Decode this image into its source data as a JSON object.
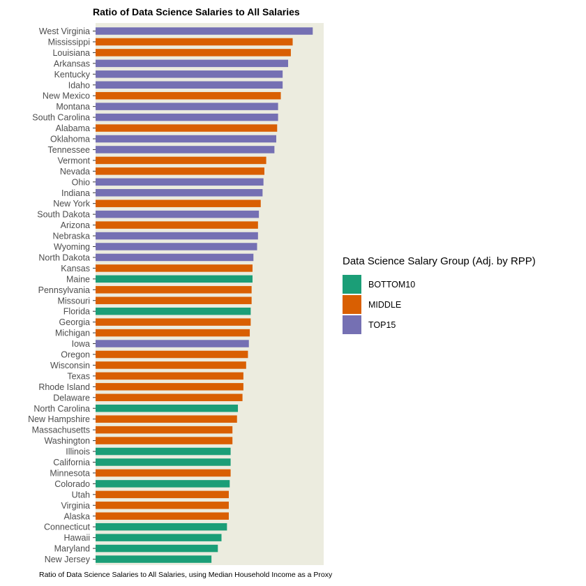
{
  "chart_data": {
    "type": "bar",
    "orientation": "horizontal",
    "title": "Ratio of Data Science Salaries to All Salaries",
    "caption": "Ratio of Data Science Salaries to All Salaries, using Median Household Income as a Proxy",
    "legend_title": "Data Science Salary Group (Adj. by RPP)",
    "legend_position": "right",
    "groups": [
      {
        "name": "BOTTOM10",
        "color": "#1b9e77"
      },
      {
        "name": "MIDDLE",
        "color": "#d95f02"
      },
      {
        "name": "TOP15",
        "color": "#7570b3"
      }
    ],
    "panel_background": "#ececdf",
    "grid": false,
    "categories": [
      "West Virginia",
      "Mississippi",
      "Louisiana",
      "Arkansas",
      "Kentucky",
      "Idaho",
      "New Mexico",
      "Montana",
      "South Carolina",
      "Alabama",
      "Oklahoma",
      "Tennessee",
      "Vermont",
      "Nevada",
      "Ohio",
      "Indiana",
      "New York",
      "South Dakota",
      "Arizona",
      "Nebraska",
      "Wyoming",
      "North Dakota",
      "Kansas",
      "Maine",
      "Pennsylvania",
      "Missouri",
      "Florida",
      "Georgia",
      "Michigan",
      "Iowa",
      "Oregon",
      "Wisconsin",
      "Texas",
      "Rhode Island",
      "Delaware",
      "North Carolina",
      "New Hampshire",
      "Massachusetts",
      "Washington",
      "Illinois",
      "California",
      "Minnesota",
      "Colorado",
      "Utah",
      "Virginia",
      "Alaska",
      "Connecticut",
      "Hawaii",
      "Maryland",
      "New Jersey"
    ],
    "values": [
      2.38,
      2.16,
      2.14,
      2.11,
      2.05,
      2.05,
      2.03,
      2.0,
      2.0,
      1.99,
      1.98,
      1.96,
      1.87,
      1.85,
      1.84,
      1.83,
      1.81,
      1.79,
      1.78,
      1.78,
      1.77,
      1.73,
      1.72,
      1.72,
      1.71,
      1.71,
      1.7,
      1.7,
      1.69,
      1.68,
      1.67,
      1.65,
      1.62,
      1.62,
      1.61,
      1.56,
      1.55,
      1.5,
      1.5,
      1.48,
      1.48,
      1.48,
      1.47,
      1.46,
      1.46,
      1.46,
      1.44,
      1.38,
      1.34,
      1.27
    ],
    "group": [
      "TOP15",
      "MIDDLE",
      "MIDDLE",
      "TOP15",
      "TOP15",
      "TOP15",
      "MIDDLE",
      "TOP15",
      "TOP15",
      "MIDDLE",
      "TOP15",
      "TOP15",
      "MIDDLE",
      "MIDDLE",
      "TOP15",
      "TOP15",
      "MIDDLE",
      "TOP15",
      "MIDDLE",
      "TOP15",
      "TOP15",
      "TOP15",
      "MIDDLE",
      "BOTTOM10",
      "MIDDLE",
      "MIDDLE",
      "BOTTOM10",
      "MIDDLE",
      "MIDDLE",
      "TOP15",
      "MIDDLE",
      "MIDDLE",
      "MIDDLE",
      "MIDDLE",
      "MIDDLE",
      "BOTTOM10",
      "MIDDLE",
      "MIDDLE",
      "MIDDLE",
      "BOTTOM10",
      "BOTTOM10",
      "MIDDLE",
      "BOTTOM10",
      "MIDDLE",
      "MIDDLE",
      "MIDDLE",
      "BOTTOM10",
      "BOTTOM10",
      "BOTTOM10",
      "BOTTOM10"
    ],
    "xlim": [
      0,
      2.5
    ],
    "x_ticks_shown": false
  }
}
